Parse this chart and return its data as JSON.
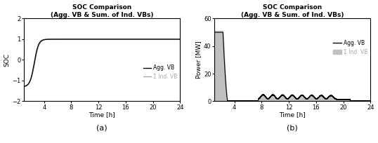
{
  "title_left": "SOC Comparison\n(Agg. VB & Sum. of Ind. VBs)",
  "title_right": "SOC Comparison\n(Agg. VB & Sum. of Ind. VBs)",
  "xlabel": "Time [h]",
  "ylabel_left": "SOC",
  "ylabel_right": "Power [MW]",
  "xticks": [
    4,
    8,
    12,
    16,
    20,
    24
  ],
  "xlim": [
    1,
    24
  ],
  "ylim_left": [
    -2,
    2
  ],
  "ylim_right": [
    0,
    60
  ],
  "yticks_left": [
    -2,
    -1,
    0,
    1,
    2
  ],
  "yticks_right": [
    0,
    20,
    40,
    60
  ],
  "legend_left": [
    "Agg. VB",
    "Σ Ind. VB"
  ],
  "legend_right": [
    "Agg. VB",
    "Σ Ind. VB"
  ],
  "label_a": "(a)",
  "label_b": "(b)",
  "color_black": "#000000",
  "color_gray": "#aaaaaa",
  "color_fill_gray": "#c0c0c0",
  "background": "#ffffff"
}
